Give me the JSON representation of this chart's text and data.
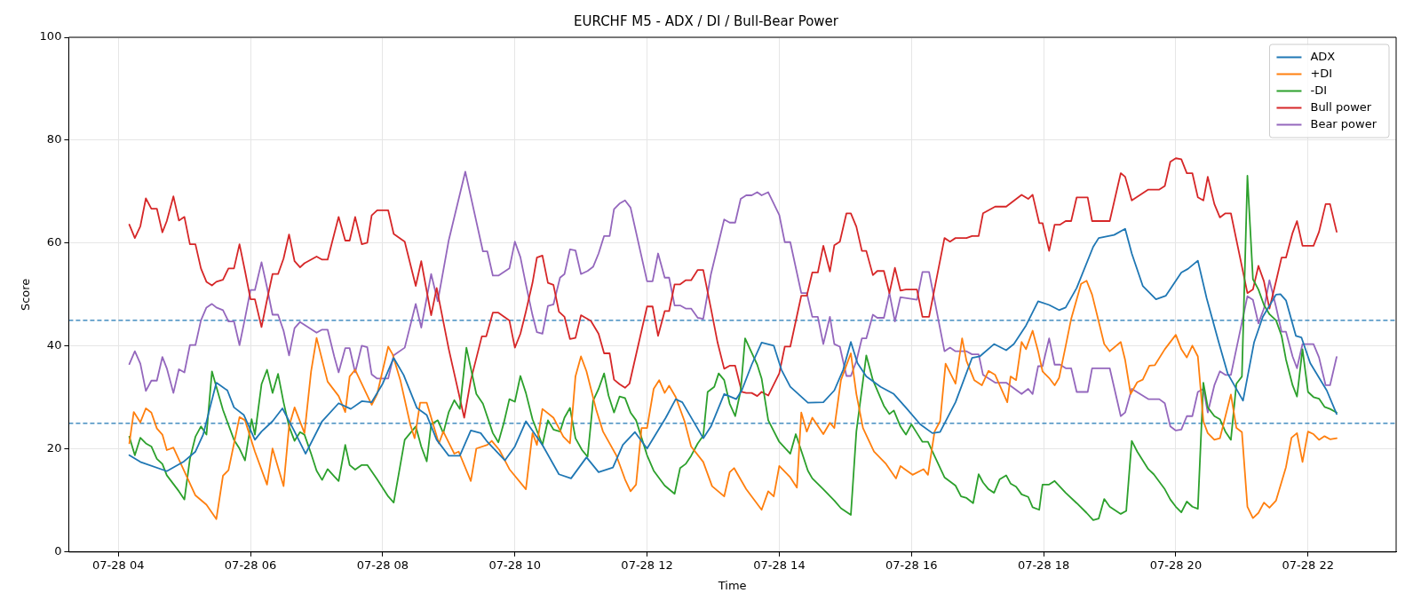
{
  "chart_data": {
    "type": "line",
    "title": "EURCHF M5 - ADX / DI / Bull-Bear Power",
    "xlabel": "Time",
    "ylabel": "Score",
    "xlim": [
      "--07-28T03:15",
      "--07-28T23:20"
    ],
    "xticks": [
      {
        "value": "--07-28T04:00",
        "label": "07-28 04"
      },
      {
        "value": "--07-28T06:00",
        "label": "07-28 06"
      },
      {
        "value": "--07-28T08:00",
        "label": "07-28 08"
      },
      {
        "value": "--07-28T10:00",
        "label": "07-28 10"
      },
      {
        "value": "--07-28T12:00",
        "label": "07-28 12"
      },
      {
        "value": "--07-28T14:00",
        "label": "07-28 14"
      },
      {
        "value": "--07-28T16:00",
        "label": "07-28 16"
      },
      {
        "value": "--07-28T18:00",
        "label": "07-28 18"
      },
      {
        "value": "--07-28T20:00",
        "label": "07-28 20"
      },
      {
        "value": "--07-28T22:00",
        "label": "07-28 22"
      }
    ],
    "ylim": [
      0,
      100
    ],
    "yticks": [
      0,
      20,
      40,
      60,
      80,
      100
    ],
    "grid": true,
    "legend": "top right",
    "ref_lines": [
      {
        "axis": "y",
        "value": 45,
        "color": "#1f77b4",
        "line_style": "dashed"
      },
      {
        "axis": "y",
        "value": 25,
        "color": "#1f77b4",
        "line_style": "dashed"
      }
    ],
    "series": [
      {
        "name": "ADX",
        "color": "#1f77b4",
        "x": [
          "--07-28T04:10",
          "--07-28T04:20",
          "--07-28T04:44",
          "--07-28T04:59",
          "--07-28T05:10",
          "--07-28T05:17",
          "--07-28T05:29",
          "--07-28T05:39",
          "--07-28T05:45",
          "--07-28T05:54",
          "--07-28T06:04",
          "--07-28T06:10",
          "--07-28T06:20",
          "--07-28T06:29",
          "--07-28T06:40",
          "--07-28T06:50",
          "--07-28T07:05",
          "--07-28T07:20",
          "--07-28T07:31",
          "--07-28T07:41",
          "--07-28T07:50",
          "--07-28T08:00",
          "--07-28T08:10",
          "--07-28T08:19",
          "--07-28T08:31",
          "--07-28T08:40",
          "--07-28T08:49",
          "--07-28T09:00",
          "--07-28T09:10",
          "--07-28T09:20",
          "--07-28T09:29",
          "--07-28T09:35",
          "--07-28T09:51",
          "--07-28T10:00",
          "--07-28T10:10",
          "--07-28T10:25",
          "--07-28T10:40",
          "--07-28T10:51",
          "--07-28T11:05",
          "--07-28T11:16",
          "--07-28T11:29",
          "--07-28T11:38",
          "--07-28T11:49",
          "--07-28T12:00",
          "--07-28T12:17",
          "--07-28T12:26",
          "--07-28T12:32",
          "--07-28T12:51",
          "--07-28T12:58",
          "--07-28T13:10",
          "--07-28T13:21",
          "--07-28T13:26",
          "--07-28T13:35",
          "--07-28T13:44",
          "--07-28T13:55",
          "--07-28T14:02",
          "--07-28T14:10",
          "--07-28T14:26",
          "--07-28T14:40",
          "--07-28T14:50",
          "--07-28T14:58",
          "--07-28T15:05",
          "--07-28T15:11",
          "--07-28T15:19",
          "--07-28T15:32",
          "--07-28T15:44",
          "--07-28T15:56",
          "--07-28T16:08",
          "--07-28T16:19",
          "--07-28T16:26",
          "--07-28T16:40",
          "--07-28T16:55",
          "--07-28T17:02",
          "--07-28T17:15",
          "--07-28T17:26",
          "--07-28T17:33",
          "--07-28T17:44",
          "--07-28T17:55",
          "--07-28T18:05",
          "--07-28T18:14",
          "--07-28T18:20",
          "--07-28T18:30",
          "--07-28T18:45",
          "--07-28T18:50",
          "--07-28T19:04",
          "--07-28T19:14",
          "--07-28T19:20",
          "--07-28T19:30",
          "--07-28T19:42",
          "--07-28T19:51",
          "--07-28T20:05",
          "--07-28T20:11",
          "--07-28T20:20",
          "--07-28T20:28",
          "--07-28T20:39",
          "--07-28T20:47",
          "--07-28T21:01",
          "--07-28T21:11",
          "--07-28T21:19",
          "--07-28T21:31",
          "--07-28T21:35",
          "--07-28T21:40",
          "--07-28T21:49",
          "--07-28T21:54",
          "--07-28T22:02",
          "--07-28T22:17",
          "--07-28T22:26"
        ],
        "values": [
          18.8,
          17.5,
          15.7,
          17.5,
          19.5,
          22.8,
          32.9,
          31.4,
          28.1,
          26.6,
          21.8,
          23.4,
          25.4,
          27.9,
          23.4,
          19.1,
          25.4,
          28.9,
          27.8,
          29.3,
          29.1,
          32.7,
          37.7,
          34.4,
          28,
          26.6,
          21.8,
          18.7,
          18.7,
          23.6,
          23.1,
          21.4,
          17.8,
          20.5,
          25.4,
          20.8,
          15.1,
          14.3,
          18.4,
          15.5,
          16.4,
          20.8,
          23.3,
          20.1,
          26.1,
          29.7,
          29.1,
          22.1,
          24.4,
          30.7,
          29.7,
          31.4,
          36.4,
          40.7,
          40.1,
          35.4,
          32.1,
          29,
          29.1,
          31.4,
          35.4,
          40.8,
          36.7,
          34.1,
          32.1,
          30.7,
          27.8,
          24.8,
          23.1,
          23.3,
          29.1,
          37.7,
          38,
          40.4,
          39.2,
          40.4,
          44,
          48.7,
          48,
          47,
          47.5,
          51.3,
          59.3,
          61,
          61.6,
          62.8,
          58,
          51.7,
          49.1,
          49.8,
          54.3,
          55,
          56.6,
          49.3,
          40.7,
          34.7,
          29.4,
          40.7,
          45.7,
          50,
          50.1,
          48.9,
          42,
          41.7,
          36.7,
          31.4,
          26.8
        ]
      },
      {
        "name": "+DI",
        "color": "#ff7f0e",
        "x": [
          "--07-28T04:10",
          "--07-28T04:14",
          "--07-28T04:20",
          "--07-28T04:25",
          "--07-28T04:30",
          "--07-28T04:35",
          "--07-28T04:40",
          "--07-28T04:44",
          "--07-28T04:50",
          "--07-28T04:59",
          "--07-28T05:10",
          "--07-28T05:20",
          "--07-28T05:29",
          "--07-28T05:35",
          "--07-28T05:40",
          "--07-28T05:50",
          "--07-28T05:55",
          "--07-28T06:04",
          "--07-28T06:15",
          "--07-28T06:20",
          "--07-28T06:30",
          "--07-28T06:35",
          "--07-28T06:40",
          "--07-28T06:49",
          "--07-28T06:55",
          "--07-28T07:00",
          "--07-28T07:10",
          "--07-28T07:20",
          "--07-28T07:26",
          "--07-28T07:30",
          "--07-28T07:35",
          "--07-28T07:50",
          "--07-28T07:55",
          "--07-28T08:05",
          "--07-28T08:09",
          "--07-28T08:16",
          "--07-28T08:25",
          "--07-28T08:29",
          "--07-28T08:34",
          "--07-28T08:40",
          "--07-28T08:51",
          "--07-28T08:55",
          "--07-28T09:05",
          "--07-28T09:09",
          "--07-28T09:20",
          "--07-28T09:25",
          "--07-28T09:35",
          "--07-28T09:39",
          "--07-28T09:46",
          "--07-28T09:55",
          "--07-28T10:10",
          "--07-28T10:16",
          "--07-28T10:20",
          "--07-28T10:25",
          "--07-28T10:35",
          "--07-28T10:44",
          "--07-28T10:50",
          "--07-28T10:55",
          "--07-28T11:00",
          "--07-28T11:05",
          "--07-28T11:14",
          "--07-28T11:20",
          "--07-28T11:32",
          "--07-28T11:40",
          "--07-28T11:45",
          "--07-28T11:50",
          "--07-28T11:55",
          "--07-28T12:00",
          "--07-28T12:06",
          "--07-28T12:11",
          "--07-28T12:16",
          "--07-28T12:20",
          "--07-28T12:26",
          "--07-28T12:34",
          "--07-28T12:40",
          "--07-28T12:51",
          "--07-28T12:59",
          "--07-28T13:10",
          "--07-28T13:15",
          "--07-28T13:19",
          "--07-28T13:30",
          "--07-28T13:44",
          "--07-28T13:50",
          "--07-28T13:55",
          "--07-28T14:00",
          "--07-28T14:10",
          "--07-28T14:16",
          "--07-28T14:20",
          "--07-28T14:25",
          "--07-28T14:30",
          "--07-28T14:40",
          "--07-28T14:46",
          "--07-28T14:50",
          "--07-28T14:56",
          "--07-28T15:05",
          "--07-28T15:10",
          "--07-28T15:16",
          "--07-28T15:26",
          "--07-28T15:37",
          "--07-28T15:46",
          "--07-28T15:50",
          "--07-28T16:01",
          "--07-28T16:11",
          "--07-28T16:15",
          "--07-28T16:21",
          "--07-28T16:26",
          "--07-28T16:31",
          "--07-28T16:40",
          "--07-28T16:46",
          "--07-28T16:50",
          "--07-28T16:57",
          "--07-28T17:04",
          "--07-28T17:10",
          "--07-28T17:16",
          "--07-28T17:27",
          "--07-28T17:30",
          "--07-28T17:35",
          "--07-28T17:40",
          "--07-28T17:44",
          "--07-28T17:50",
          "--07-28T17:55",
          "--07-28T17:59",
          "--07-28T18:05",
          "--07-28T18:10",
          "--07-28T18:14",
          "--07-28T18:20",
          "--07-28T18:25",
          "--07-28T18:34",
          "--07-28T18:39",
          "--07-28T18:44",
          "--07-28T18:55",
          "--07-28T19:00",
          "--07-28T19:10",
          "--07-28T19:14",
          "--07-28T19:19",
          "--07-28T19:25",
          "--07-28T19:30",
          "--07-28T19:36",
          "--07-28T19:41",
          "--07-28T19:50",
          "--07-28T20:00",
          "--07-28T20:05",
          "--07-28T20:10",
          "--07-28T20:15",
          "--07-28T20:20",
          "--07-28T20:25",
          "--07-28T20:29",
          "--07-28T20:35",
          "--07-28T20:40",
          "--07-28T20:50",
          "--07-28T20:55",
          "--07-28T21:00",
          "--07-28T21:05",
          "--07-28T21:10",
          "--07-28T21:15",
          "--07-28T21:20",
          "--07-28T21:25",
          "--07-28T21:31",
          "--07-28T21:40",
          "--07-28T21:45",
          "--07-28T21:50",
          "--07-28T21:55",
          "--07-28T22:00",
          "--07-28T22:05",
          "--07-28T22:10",
          "--07-28T22:15",
          "--07-28T22:20",
          "--07-28T22:26"
        ],
        "values": [
          21.1,
          27.2,
          25.2,
          27.9,
          27.1,
          24,
          22.8,
          19.8,
          20.3,
          16.1,
          11,
          9.2,
          6.4,
          14.8,
          15.9,
          26.2,
          25.6,
          19.5,
          13.1,
          20.1,
          12.8,
          24.4,
          28.1,
          23.1,
          35.1,
          41.6,
          33.1,
          30.3,
          27.2,
          34.1,
          35.4,
          28.6,
          30.7,
          39.9,
          38.4,
          33.4,
          24.8,
          22.1,
          29,
          29,
          21.1,
          23.4,
          19.1,
          19.5,
          13.8,
          20.1,
          20.8,
          21.6,
          19.8,
          16.1,
          12.2,
          23.1,
          20.8,
          27.8,
          26.1,
          22.4,
          21.1,
          34.1,
          38,
          35.1,
          27.5,
          23.4,
          18.8,
          14.1,
          11.8,
          13.1,
          24.1,
          24.1,
          31.7,
          33.4,
          30.9,
          32.3,
          30.1,
          25.4,
          20.5,
          17.5,
          12.8,
          10.8,
          15.5,
          16.3,
          12.2,
          8.2,
          11.8,
          10.8,
          16.7,
          14.5,
          12.5,
          27.1,
          23.4,
          26.1,
          22.9,
          25.1,
          24.1,
          33.4,
          38.6,
          30.7,
          24.1,
          19.5,
          17.1,
          14.3,
          16.7,
          15,
          16.1,
          15,
          23.4,
          25.4,
          36.6,
          32.7,
          41.5,
          37.1,
          33.4,
          32.4,
          35.2,
          34.4,
          29.1,
          34.1,
          33.4,
          40.8,
          39.4,
          43,
          39,
          35.1,
          33.8,
          32.4,
          33.8,
          40,
          45.3,
          52.1,
          52.7,
          50,
          40.4,
          39,
          40.8,
          37.3,
          30.7,
          33,
          33.5,
          36.2,
          36.3,
          39.4,
          42.2,
          39.4,
          37.8,
          40.1,
          38,
          25.4,
          23.1,
          21.8,
          22.1,
          30.6,
          24.1,
          23.3,
          8.8,
          6.6,
          7.6,
          9.6,
          8.6,
          10,
          16.5,
          22.2,
          23.1,
          17.5,
          23.4,
          22.9,
          21.8,
          22.5,
          21.9,
          22.1
        ]
      },
      {
        "name": "-DI",
        "color": "#2ca02c",
        "x": [
          "--07-28T04:10",
          "--07-28T04:15",
          "--07-28T04:20",
          "--07-28T04:25",
          "--07-28T04:30",
          "--07-28T04:35",
          "--07-28T04:40",
          "--07-28T04:44",
          "--07-28T04:55",
          "--07-28T05:00",
          "--07-28T05:05",
          "--07-28T05:10",
          "--07-28T05:15",
          "--07-28T05:20",
          "--07-28T05:25",
          "--07-28T05:29",
          "--07-28T05:35",
          "--07-28T05:45",
          "--07-28T05:50",
          "--07-28T05:55",
          "--07-28T06:01",
          "--07-28T06:04",
          "--07-28T06:10",
          "--07-28T06:15",
          "--07-28T06:20",
          "--07-28T06:25",
          "--07-28T06:30",
          "--07-28T06:35",
          "--07-28T06:40",
          "--07-28T06:45",
          "--07-28T06:49",
          "--07-28T06:55",
          "--07-28T07:00",
          "--07-28T07:05",
          "--07-28T07:10",
          "--07-28T07:16",
          "--07-28T07:20",
          "--07-28T07:26",
          "--07-28T07:30",
          "--07-28T07:35",
          "--07-28T07:41",
          "--07-28T07:46",
          "--07-28T07:55",
          "--07-28T08:05",
          "--07-28T08:10",
          "--07-28T08:20",
          "--07-28T08:30",
          "--07-28T08:35",
          "--07-28T08:40",
          "--07-28T08:44",
          "--07-28T08:50",
          "--07-28T08:55",
          "--07-28T09:00",
          "--07-28T09:05",
          "--07-28T09:10",
          "--07-28T09:16",
          "--07-28T09:25",
          "--07-28T09:31",
          "--07-28T09:40",
          "--07-28T09:45",
          "--07-28T09:50",
          "--07-28T09:55",
          "--07-28T10:00",
          "--07-28T10:05",
          "--07-28T10:10",
          "--07-28T10:16",
          "--07-28T10:25",
          "--07-28T10:30",
          "--07-28T10:35",
          "--07-28T10:41",
          "--07-28T10:45",
          "--07-28T10:50",
          "--07-28T10:55",
          "--07-28T11:01",
          "--07-28T11:06",
          "--07-28T11:11",
          "--07-28T11:16",
          "--07-28T11:21",
          "--07-28T11:25",
          "--07-28T11:30",
          "--07-28T11:35",
          "--07-28T11:40",
          "--07-28T11:45",
          "--07-28T11:50",
          "--07-28T12:00",
          "--07-28T12:06",
          "--07-28T12:16",
          "--07-28T12:25",
          "--07-28T12:30",
          "--07-28T12:35",
          "--07-28T12:40",
          "--07-28T12:46",
          "--07-28T12:51",
          "--07-28T12:55",
          "--07-28T13:01",
          "--07-28T13:05",
          "--07-28T13:10",
          "--07-28T13:15",
          "--07-28T13:20",
          "--07-28T13:25",
          "--07-28T13:29",
          "--07-28T13:35",
          "--07-28T13:40",
          "--07-28T13:44",
          "--07-28T13:50",
          "--07-28T14:00",
          "--07-28T14:10",
          "--07-28T14:15",
          "--07-28T14:26",
          "--07-28T14:30",
          "--07-28T14:40",
          "--07-28T14:50",
          "--07-28T14:56",
          "--07-28T15:05",
          "--07-28T15:10",
          "--07-28T15:19",
          "--07-28T15:25",
          "--07-28T15:35",
          "--07-28T15:40",
          "--07-28T15:44",
          "--07-28T15:50",
          "--07-28T15:55",
          "--07-28T16:00",
          "--07-28T16:05",
          "--07-28T16:10",
          "--07-28T16:15",
          "--07-28T16:30",
          "--07-28T16:40",
          "--07-28T16:45",
          "--07-28T16:50",
          "--07-28T16:56",
          "--07-28T17:01",
          "--07-28T17:05",
          "--07-28T17:10",
          "--07-28T17:15",
          "--07-28T17:20",
          "--07-28T17:26",
          "--07-28T17:30",
          "--07-28T17:35",
          "--07-28T17:40",
          "--07-28T17:46",
          "--07-28T17:50",
          "--07-28T17:56",
          "--07-28T17:59",
          "--07-28T18:05",
          "--07-28T18:10",
          "--07-28T18:20",
          "--07-28T18:30",
          "--07-28T18:39",
          "--07-28T18:45",
          "--07-28T18:50",
          "--07-28T18:55",
          "--07-28T19:00",
          "--07-28T19:10",
          "--07-28T19:15",
          "--07-28T19:20",
          "--07-28T19:25",
          "--07-28T19:35",
          "--07-28T19:40",
          "--07-28T19:50",
          "--07-28T19:55",
          "--07-28T20:00",
          "--07-28T20:05",
          "--07-28T20:10",
          "--07-28T20:15",
          "--07-28T20:20",
          "--07-28T20:25",
          "--07-28T20:29",
          "--07-28T20:35",
          "--07-28T20:40",
          "--07-28T20:45",
          "--07-28T20:50",
          "--07-28T20:55",
          "--07-28T21:00",
          "--07-28T21:05",
          "--07-28T21:10",
          "--07-28T21:15",
          "--07-28T21:20",
          "--07-28T21:25",
          "--07-28T21:31",
          "--07-28T21:36",
          "--07-28T21:40",
          "--07-28T21:46",
          "--07-28T21:50",
          "--07-28T21:55",
          "--07-28T22:00",
          "--07-28T22:05",
          "--07-28T22:10",
          "--07-28T22:15",
          "--07-28T22:20",
          "--07-28T22:26"
        ],
        "values": [
          22.4,
          18.8,
          22.2,
          21.1,
          20.5,
          18.1,
          17.1,
          14.9,
          11.8,
          10.2,
          18.1,
          22.4,
          24.4,
          22.8,
          35.1,
          32.1,
          27.6,
          21.8,
          20.1,
          17.8,
          25.8,
          22.8,
          32.6,
          35.4,
          30.9,
          34.6,
          29.1,
          24.4,
          21.6,
          23.3,
          22.8,
          19.1,
          15.8,
          14,
          16.1,
          14.7,
          13.8,
          20.8,
          16.9,
          16,
          16.9,
          16.9,
          14.1,
          10.8,
          9.6,
          21.8,
          24.4,
          20.5,
          17.6,
          24.8,
          25.6,
          23.1,
          27.2,
          29.5,
          27.8,
          39.7,
          30.7,
          28.8,
          23.1,
          21.3,
          25.1,
          29.7,
          29.2,
          34.2,
          30.9,
          25.8,
          20.8,
          25.6,
          23.8,
          23.4,
          26.1,
          28,
          22.1,
          19.8,
          18.5,
          29.4,
          31.7,
          34.7,
          30.4,
          27.1,
          30.2,
          29.9,
          27.1,
          25.6,
          18.8,
          15.8,
          12.9,
          11.3,
          16.3,
          17.1,
          18.7,
          21.1,
          22.6,
          31.1,
          32.1,
          34.7,
          33.4,
          28.8,
          26.4,
          31.4,
          41.5,
          38.7,
          36.4,
          33.7,
          25.6,
          21.4,
          19.1,
          22.9,
          15.8,
          14.3,
          12.2,
          10,
          8.5,
          7.2,
          23.4,
          38.2,
          33.4,
          28.4,
          26.8,
          27.5,
          24.4,
          22.8,
          24.8,
          23.1,
          21.4,
          21.4,
          14.5,
          12.9,
          10.8,
          10.5,
          9.5,
          15.1,
          13.5,
          12.2,
          11.5,
          14.1,
          14.9,
          13.3,
          12.7,
          11.2,
          10.7,
          8.7,
          8.2,
          13.1,
          13.1,
          13.8,
          11.5,
          9.5,
          7.6,
          6.2,
          6.5,
          10.3,
          8.8,
          7.4,
          8,
          21.6,
          19.5,
          16.1,
          15.1,
          12.2,
          10.2,
          8.8,
          7.7,
          9.8,
          8.8,
          8.4,
          32.9,
          28.1,
          26.4,
          25.8,
          23.4,
          21.8,
          32.7,
          34.1,
          73.1,
          53,
          51,
          48,
          46.2,
          45,
          42,
          37.4,
          32.4,
          30.2,
          39.4,
          31.1,
          30.1,
          29.8,
          28.2,
          27.8,
          27.1
        ]
      },
      {
        "name": "Bull power",
        "color": "#d62728",
        "x": [
          "--07-28T04:10",
          "--07-28T04:15",
          "--07-28T04:20",
          "--07-28T04:25",
          "--07-28T04:30",
          "--07-28T04:35",
          "--07-28T04:40",
          "--07-28T04:44",
          "--07-28T04:50",
          "--07-28T04:55",
          "--07-28T05:00",
          "--07-28T05:05",
          "--07-28T05:10",
          "--07-28T05:15",
          "--07-28T05:20",
          "--07-28T05:25",
          "--07-28T05:29",
          "--07-28T05:35",
          "--07-28T05:40",
          "--07-28T05:45",
          "--07-28T05:50",
          "--07-28T05:55",
          "--07-28T06:00",
          "--07-28T06:04",
          "--07-28T06:10",
          "--07-28T06:15",
          "--07-28T06:20",
          "--07-28T06:25",
          "--07-28T06:30",
          "--07-28T06:35",
          "--07-28T06:40",
          "--07-28T06:45",
          "--07-28T06:49",
          "--07-28T07:00",
          "--07-28T07:05",
          "--07-28T07:10",
          "--07-28T07:16",
          "--07-28T07:20",
          "--07-28T07:26",
          "--07-28T07:30",
          "--07-28T07:35",
          "--07-28T07:41",
          "--07-28T07:46",
          "--07-28T07:50",
          "--07-28T07:55",
          "--07-28T08:05",
          "--07-28T08:10",
          "--07-28T08:20",
          "--07-28T08:30",
          "--07-28T08:35",
          "--07-28T08:44",
          "--07-28T08:49",
          "--07-28T09:00",
          "--07-28T09:14",
          "--07-28T09:20",
          "--07-28T09:30",
          "--07-28T09:34",
          "--07-28T09:40",
          "--07-28T09:45",
          "--07-28T09:55",
          "--07-28T10:00",
          "--07-28T10:05",
          "--07-28T10:10",
          "--07-28T10:16",
          "--07-28T10:20",
          "--07-28T10:25",
          "--07-28T10:30",
          "--07-28T10:35",
          "--07-28T10:40",
          "--07-28T10:45",
          "--07-28T10:50",
          "--07-28T10:55",
          "--07-28T11:00",
          "--07-28T11:09",
          "--07-28T11:16",
          "--07-28T11:21",
          "--07-28T11:26",
          "--07-28T11:30",
          "--07-28T11:35",
          "--07-28T11:40",
          "--07-28T11:44",
          "--07-28T12:00",
          "--07-28T12:05",
          "--07-28T12:10",
          "--07-28T12:16",
          "--07-28T12:20",
          "--07-28T12:25",
          "--07-28T12:30",
          "--07-28T12:35",
          "--07-28T12:40",
          "--07-28T12:46",
          "--07-28T12:51",
          "--07-28T12:58",
          "--07-28T13:04",
          "--07-28T13:10",
          "--07-28T13:15",
          "--07-28T13:20",
          "--07-28T13:26",
          "--07-28T13:30",
          "--07-28T13:35",
          "--07-28T13:40",
          "--07-28T13:44",
          "--07-28T13:50",
          "--07-28T14:00",
          "--07-28T14:05",
          "--07-28T14:10",
          "--07-28T14:20",
          "--07-28T14:25",
          "--07-28T14:30",
          "--07-28T14:35",
          "--07-28T14:40",
          "--07-28T14:46",
          "--07-28T14:50",
          "--07-28T14:55",
          "--07-28T15:01",
          "--07-28T15:05",
          "--07-28T15:10",
          "--07-28T15:15",
          "--07-28T15:19",
          "--07-28T15:25",
          "--07-28T15:29",
          "--07-28T15:35",
          "--07-28T15:40",
          "--07-28T15:45",
          "--07-28T15:50",
          "--07-28T15:55",
          "--07-28T16:05",
          "--07-28T16:10",
          "--07-28T16:16",
          "--07-28T16:30",
          "--07-28T16:35",
          "--07-28T16:40",
          "--07-28T16:50",
          "--07-28T16:55",
          "--07-28T17:01",
          "--07-28T17:05",
          "--07-28T17:16",
          "--07-28T17:26",
          "--07-28T17:40",
          "--07-28T17:46",
          "--07-28T17:50",
          "--07-28T17:56",
          "--07-28T17:59",
          "--07-28T18:05",
          "--07-28T18:10",
          "--07-28T18:15",
          "--07-28T18:20",
          "--07-28T18:25",
          "--07-28T18:30",
          "--07-28T18:40",
          "--07-28T18:44",
          "--07-28T19:00",
          "--07-28T19:10",
          "--07-28T19:14",
          "--07-28T19:20",
          "--07-28T19:35",
          "--07-28T19:45",
          "--07-28T19:50",
          "--07-28T19:55",
          "--07-28T20:00",
          "--07-28T20:05",
          "--07-28T20:10",
          "--07-28T20:15",
          "--07-28T20:20",
          "--07-28T20:25",
          "--07-28T20:29",
          "--07-28T20:35",
          "--07-28T20:40",
          "--07-28T20:45",
          "--07-28T20:50",
          "--07-28T21:05",
          "--07-28T21:10",
          "--07-28T21:15",
          "--07-28T21:20",
          "--07-28T21:25",
          "--07-28T21:31",
          "--07-28T21:36",
          "--07-28T21:40",
          "--07-28T21:46",
          "--07-28T21:50",
          "--07-28T21:55",
          "--07-28T22:05",
          "--07-28T22:10",
          "--07-28T22:16",
          "--07-28T22:20",
          "--07-28T22:26"
        ],
        "values": [
          63.6,
          61,
          63.3,
          68.7,
          66.7,
          66.7,
          62.1,
          64.3,
          69.1,
          64.4,
          65.1,
          59.8,
          59.8,
          55.1,
          52.5,
          51.8,
          52.5,
          52.9,
          55.1,
          55.1,
          59.8,
          54.6,
          49.1,
          49.1,
          43.7,
          49,
          54,
          54,
          57,
          61.7,
          56.5,
          55.3,
          56.1,
          57.4,
          56.8,
          56.8,
          61.8,
          65.1,
          60.5,
          60.5,
          65.1,
          59.8,
          60.1,
          65.4,
          66.4,
          66.4,
          61.8,
          60.3,
          51.7,
          56.5,
          46,
          51.3,
          39.4,
          26.1,
          33.4,
          41.9,
          41.9,
          46.5,
          46.5,
          45,
          39.7,
          42.4,
          46.7,
          52.3,
          57.2,
          57.6,
          52.3,
          51.9,
          46.7,
          45.7,
          41.4,
          41.6,
          46,
          44.9,
          42.4,
          38.6,
          38.6,
          33.5,
          32.6,
          31.9,
          32.7,
          47.7,
          47.7,
          42,
          46.8,
          46.8,
          52,
          52,
          52.8,
          52.8,
          54.8,
          54.8,
          47.3,
          40.7,
          35.6,
          36.2,
          36.2,
          31.1,
          30.9,
          30.9,
          30.3,
          31.1,
          30.4,
          34.7,
          39.9,
          39.9,
          49.8,
          49.8,
          54.3,
          54.3,
          59.5,
          54.5,
          59.6,
          60.3,
          65.8,
          65.8,
          63.2,
          58.5,
          58.5,
          53.8,
          54.6,
          54.6,
          50.3,
          55.2,
          50.8,
          51,
          51,
          45.7,
          45.7,
          61,
          60.3,
          61,
          61,
          61.4,
          61.4,
          65.8,
          67.1,
          67.1,
          69.4,
          68.6,
          69.4,
          63.9,
          63.9,
          58.5,
          63.6,
          63.6,
          64.3,
          64.3,
          68.9,
          68.9,
          64.3,
          64.3,
          73.6,
          72.9,
          68.3,
          70.4,
          70.4,
          71.1,
          75.8,
          76.5,
          76.3,
          73.6,
          73.6,
          68.9,
          68.3,
          72.9,
          67.6,
          65,
          65.8,
          65.8,
          50.3,
          51,
          55.6,
          52.6,
          47.3,
          52.6,
          57.2,
          57.2,
          62,
          64.3,
          59.5,
          59.5,
          62.2,
          67.6,
          67.6,
          62.2
        ]
      },
      {
        "name": "Bear power",
        "color": "#9467bd",
        "x": [
          "--07-28T04:10",
          "--07-28T04:15",
          "--07-28T04:20",
          "--07-28T04:25",
          "--07-28T04:30",
          "--07-28T04:35",
          "--07-28T04:40",
          "--07-28T04:44",
          "--07-28T04:50",
          "--07-28T04:55",
          "--07-28T05:00",
          "--07-28T05:05",
          "--07-28T05:10",
          "--07-28T05:15",
          "--07-28T05:20",
          "--07-28T05:25",
          "--07-28T05:29",
          "--07-28T05:35",
          "--07-28T05:40",
          "--07-28T05:45",
          "--07-28T05:50",
          "--07-28T05:55",
          "--07-28T06:00",
          "--07-28T06:04",
          "--07-28T06:10",
          "--07-28T06:15",
          "--07-28T06:20",
          "--07-28T06:25",
          "--07-28T06:30",
          "--07-28T06:35",
          "--07-28T06:40",
          "--07-28T06:45",
          "--07-28T07:00",
          "--07-28T07:05",
          "--07-28T07:10",
          "--07-28T07:16",
          "--07-28T07:20",
          "--07-28T07:26",
          "--07-28T07:30",
          "--07-28T07:35",
          "--07-28T07:41",
          "--07-28T07:46",
          "--07-28T07:50",
          "--07-28T07:55",
          "--07-28T08:05",
          "--07-28T08:10",
          "--07-28T08:20",
          "--07-28T08:30",
          "--07-28T08:35",
          "--07-28T08:44",
          "--07-28T08:50",
          "--07-28T09:00",
          "--07-28T09:15",
          "--07-28T09:31",
          "--07-28T09:35",
          "--07-28T09:40",
          "--07-28T09:45",
          "--07-28T09:55",
          "--07-28T10:00",
          "--07-28T10:05",
          "--07-28T10:10",
          "--07-28T10:16",
          "--07-28T10:20",
          "--07-28T10:25",
          "--07-28T10:30",
          "--07-28T10:35",
          "--07-28T10:41",
          "--07-28T10:45",
          "--07-28T10:50",
          "--07-28T10:55",
          "--07-28T11:00",
          "--07-28T11:06",
          "--07-28T11:11",
          "--07-28T11:16",
          "--07-28T11:21",
          "--07-28T11:26",
          "--07-28T11:30",
          "--07-28T11:35",
          "--07-28T11:40",
          "--07-28T11:45",
          "--07-28T12:00",
          "--07-28T12:05",
          "--07-28T12:10",
          "--07-28T12:16",
          "--07-28T12:20",
          "--07-28T12:25",
          "--07-28T12:30",
          "--07-28T12:35",
          "--07-28T12:40",
          "--07-28T12:46",
          "--07-28T12:51",
          "--07-28T12:58",
          "--07-28T13:10",
          "--07-28T13:15",
          "--07-28T13:20",
          "--07-28T13:25",
          "--07-28T13:30",
          "--07-28T13:35",
          "--07-28T13:40",
          "--07-28T13:44",
          "--07-28T13:50",
          "--07-28T14:00",
          "--07-28T14:05",
          "--07-28T14:10",
          "--07-28T14:20",
          "--07-28T14:25",
          "--07-28T14:30",
          "--07-28T14:35",
          "--07-28T14:40",
          "--07-28T14:46",
          "--07-28T14:50",
          "--07-28T14:55",
          "--07-28T15:01",
          "--07-28T15:05",
          "--07-28T15:10",
          "--07-28T15:15",
          "--07-28T15:19",
          "--07-28T15:25",
          "--07-28T15:29",
          "--07-28T15:35",
          "--07-28T15:40",
          "--07-28T15:45",
          "--07-28T15:50",
          "--07-28T16:05",
          "--07-28T16:10",
          "--07-28T16:16",
          "--07-28T16:30",
          "--07-28T16:35",
          "--07-28T16:40",
          "--07-28T16:50",
          "--07-28T16:55",
          "--07-28T17:01",
          "--07-28T17:05",
          "--07-28T17:16",
          "--07-28T17:26",
          "--07-28T17:40",
          "--07-28T17:46",
          "--07-28T17:50",
          "--07-28T17:55",
          "--07-28T17:59",
          "--07-28T18:05",
          "--07-28T18:10",
          "--07-28T18:15",
          "--07-28T18:20",
          "--07-28T18:25",
          "--07-28T18:30",
          "--07-28T18:40",
          "--07-28T18:44",
          "--07-28T19:00",
          "--07-28T19:10",
          "--07-28T19:14",
          "--07-28T19:20",
          "--07-28T19:35",
          "--07-28T19:45",
          "--07-28T19:50",
          "--07-28T19:55",
          "--07-28T20:00",
          "--07-28T20:05",
          "--07-28T20:10",
          "--07-28T20:15",
          "--07-28T20:20",
          "--07-28T20:25",
          "--07-28T20:29",
          "--07-28T20:35",
          "--07-28T20:40",
          "--07-28T20:45",
          "--07-28T20:50",
          "--07-28T21:05",
          "--07-28T21:10",
          "--07-28T21:15",
          "--07-28T21:20",
          "--07-28T21:25",
          "--07-28T21:31",
          "--07-28T21:36",
          "--07-28T21:40",
          "--07-28T21:46",
          "--07-28T21:50",
          "--07-28T21:55",
          "--07-28T22:05",
          "--07-28T22:10",
          "--07-28T22:16",
          "--07-28T22:20",
          "--07-28T22:26"
        ],
        "values": [
          36.5,
          39,
          36.6,
          31.3,
          33.3,
          33.3,
          37.9,
          35.7,
          30.9,
          35.5,
          34.9,
          40.2,
          40.2,
          45,
          47.5,
          48.2,
          47.5,
          47,
          44.8,
          44.8,
          40.2,
          45.4,
          50.9,
          50.9,
          56.3,
          51.4,
          46.1,
          46.1,
          43,
          38.2,
          43.5,
          44.7,
          42.6,
          43.2,
          43.2,
          38,
          34.9,
          39.6,
          39.6,
          34.9,
          40.1,
          39.8,
          34.5,
          33.7,
          33.7,
          38.2,
          39.7,
          48.2,
          43.6,
          54,
          48.7,
          60.6,
          73.9,
          58.4,
          58.4,
          53.7,
          53.7,
          55.1,
          60.3,
          57.3,
          52,
          46,
          42.7,
          42.4,
          47.8,
          48.1,
          53.3,
          54,
          58.8,
          58.6,
          54,
          54.6,
          55.4,
          58,
          61.4,
          61.4,
          66.6,
          67.7,
          68.3,
          66.9,
          52.6,
          52.6,
          58,
          53.3,
          53.3,
          47.9,
          47.9,
          47.3,
          47.3,
          45.5,
          45.3,
          54,
          64.6,
          64,
          64,
          68.6,
          69.3,
          69.3,
          69.9,
          69.3,
          69.9,
          65.5,
          60.2,
          60.2,
          50.3,
          50.3,
          45.7,
          45.7,
          40.4,
          45.7,
          40.4,
          39.9,
          34.2,
          34.2,
          37.1,
          41.5,
          41.5,
          46.1,
          45.5,
          45.5,
          50.3,
          44.8,
          49.5,
          49,
          54.4,
          54.4,
          39,
          39.7,
          39,
          39,
          38.4,
          38.4,
          34.4,
          32.9,
          32.9,
          30.7,
          31.7,
          30.7,
          36.1,
          36.1,
          41.5,
          36.4,
          36.4,
          35.7,
          35.7,
          31.1,
          31.1,
          35.7,
          35.7,
          26.4,
          27.1,
          31.7,
          29.7,
          29.7,
          28.9,
          24.4,
          23.6,
          23.8,
          26.4,
          26.4,
          31.1,
          31.7,
          27.1,
          32.4,
          35.1,
          34.4,
          34.4,
          49.7,
          49,
          44.4,
          47.3,
          52.8,
          47.6,
          42.8,
          42.8,
          38,
          35.7,
          40.4,
          40.4,
          37.8,
          32.4,
          32.4,
          37.9
        ]
      }
    ]
  }
}
